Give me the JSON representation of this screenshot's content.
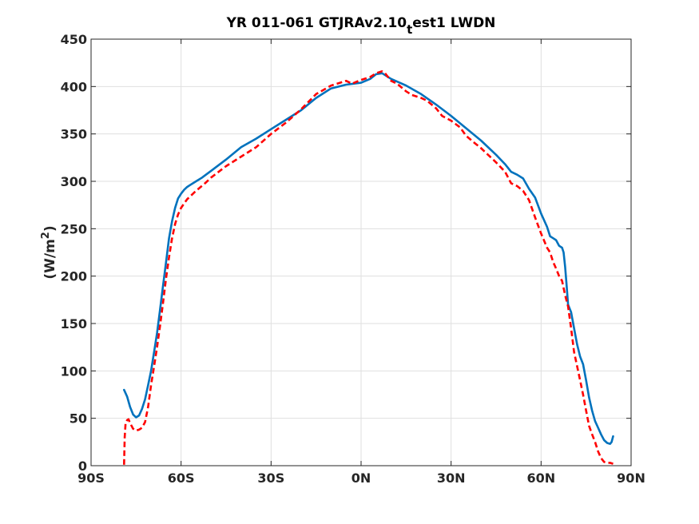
{
  "chart_data": {
    "type": "line",
    "title": {
      "main": "YR 011-061 GTJRAv2.10",
      "subscript": "t",
      "suffix": "est1 LWDN"
    },
    "xlabel": "",
    "ylabel": {
      "prefix": "(W/m",
      "superscript": "2",
      "suffix": ")"
    },
    "xlim": [
      -90,
      90
    ],
    "ylim": [
      0,
      450
    ],
    "xticks": [
      -90,
      -60,
      -30,
      0,
      30,
      60,
      90
    ],
    "xtick_labels": [
      "90S",
      "60S",
      "30S",
      "0N",
      "30N",
      "60N",
      "90N"
    ],
    "yticks": [
      0,
      50,
      100,
      150,
      200,
      250,
      300,
      350,
      400,
      450
    ],
    "ytick_labels": [
      "0",
      "50",
      "100",
      "150",
      "200",
      "250",
      "300",
      "350",
      "400",
      "450"
    ],
    "grid": true,
    "series": [
      {
        "color": "#0072bd",
        "style": "solid",
        "points": [
          [
            -79,
            80
          ],
          [
            -78,
            73
          ],
          [
            -77,
            62
          ],
          [
            -76,
            54
          ],
          [
            -75,
            51
          ],
          [
            -74,
            53
          ],
          [
            -73,
            60
          ],
          [
            -72,
            70
          ],
          [
            -71,
            85
          ],
          [
            -70,
            100
          ],
          [
            -69,
            120
          ],
          [
            -68,
            140
          ],
          [
            -67,
            165
          ],
          [
            -66,
            190
          ],
          [
            -65,
            215
          ],
          [
            -64,
            240
          ],
          [
            -63,
            258
          ],
          [
            -62,
            272
          ],
          [
            -61,
            282
          ],
          [
            -60,
            287
          ],
          [
            -59,
            291
          ],
          [
            -58,
            294
          ],
          [
            -57,
            296
          ],
          [
            -55,
            300
          ],
          [
            -53,
            304
          ],
          [
            -50,
            311
          ],
          [
            -45,
            323
          ],
          [
            -40,
            336
          ],
          [
            -35,
            345
          ],
          [
            -30,
            355
          ],
          [
            -25,
            365
          ],
          [
            -20,
            375
          ],
          [
            -15,
            388
          ],
          [
            -10,
            398
          ],
          [
            -5,
            402
          ],
          [
            0,
            404
          ],
          [
            3,
            408
          ],
          [
            5,
            413
          ],
          [
            7,
            414
          ],
          [
            10,
            408
          ],
          [
            15,
            401
          ],
          [
            20,
            392
          ],
          [
            25,
            381
          ],
          [
            30,
            369
          ],
          [
            35,
            356
          ],
          [
            40,
            343
          ],
          [
            45,
            328
          ],
          [
            48,
            318
          ],
          [
            50,
            310
          ],
          [
            52,
            307
          ],
          [
            54,
            303
          ],
          [
            56,
            292
          ],
          [
            58,
            283
          ],
          [
            60,
            266
          ],
          [
            62,
            252
          ],
          [
            63,
            242
          ],
          [
            64,
            240
          ],
          [
            65,
            238
          ],
          [
            66,
            232
          ],
          [
            67,
            230
          ],
          [
            67.5,
            225
          ],
          [
            68,
            210
          ],
          [
            68.5,
            190
          ],
          [
            69,
            170
          ],
          [
            70,
            162
          ],
          [
            71,
            145
          ],
          [
            72,
            128
          ],
          [
            73,
            115
          ],
          [
            74,
            107
          ],
          [
            75,
            90
          ],
          [
            76,
            72
          ],
          [
            77,
            58
          ],
          [
            78,
            47
          ],
          [
            79,
            40
          ],
          [
            80,
            33
          ],
          [
            81,
            27
          ],
          [
            82,
            24
          ],
          [
            83,
            23
          ],
          [
            83.5,
            25
          ],
          [
            84,
            31
          ]
        ]
      },
      {
        "color": "#ff0000",
        "style": "dashed",
        "points": [
          [
            -79,
            1
          ],
          [
            -78.8,
            30
          ],
          [
            -78.5,
            45
          ],
          [
            -78,
            48
          ],
          [
            -77.5,
            49
          ],
          [
            -77,
            45
          ],
          [
            -76,
            39
          ],
          [
            -75,
            37
          ],
          [
            -74,
            38
          ],
          [
            -73,
            40
          ],
          [
            -72,
            46
          ],
          [
            -71,
            62
          ],
          [
            -70,
            85
          ],
          [
            -69,
            105
          ],
          [
            -68,
            125
          ],
          [
            -67,
            148
          ],
          [
            -66,
            172
          ],
          [
            -65,
            198
          ],
          [
            -64,
            220
          ],
          [
            -63,
            240
          ],
          [
            -62,
            255
          ],
          [
            -61,
            265
          ],
          [
            -60,
            272
          ],
          [
            -58,
            281
          ],
          [
            -55,
            290
          ],
          [
            -52,
            298
          ],
          [
            -50,
            304
          ],
          [
            -45,
            316
          ],
          [
            -40,
            326
          ],
          [
            -35,
            336
          ],
          [
            -30,
            350
          ],
          [
            -25,
            362
          ],
          [
            -20,
            376
          ],
          [
            -15,
            392
          ],
          [
            -10,
            401
          ],
          [
            -7,
            404
          ],
          [
            -5,
            406
          ],
          [
            -3,
            403
          ],
          [
            0,
            407
          ],
          [
            3,
            410
          ],
          [
            5,
            414
          ],
          [
            7,
            416
          ],
          [
            8,
            414
          ],
          [
            10,
            406
          ],
          [
            12,
            403
          ],
          [
            15,
            395
          ],
          [
            17,
            391
          ],
          [
            20,
            388
          ],
          [
            22,
            385
          ],
          [
            25,
            377
          ],
          [
            27,
            369
          ],
          [
            30,
            364
          ],
          [
            33,
            357
          ],
          [
            35,
            348
          ],
          [
            38,
            340
          ],
          [
            40,
            335
          ],
          [
            45,
            320
          ],
          [
            48,
            310
          ],
          [
            50,
            298
          ],
          [
            52,
            295
          ],
          [
            54,
            290
          ],
          [
            56,
            280
          ],
          [
            58,
            262
          ],
          [
            60,
            245
          ],
          [
            62,
            230
          ],
          [
            63,
            225
          ],
          [
            64,
            215
          ],
          [
            65,
            208
          ],
          [
            66,
            200
          ],
          [
            67,
            195
          ],
          [
            68,
            180
          ],
          [
            69,
            168
          ],
          [
            70,
            145
          ],
          [
            71,
            120
          ],
          [
            72,
            105
          ],
          [
            73,
            90
          ],
          [
            74,
            75
          ],
          [
            75,
            58
          ],
          [
            76,
            42
          ],
          [
            77,
            33
          ],
          [
            78,
            25
          ],
          [
            79,
            15
          ],
          [
            80,
            8
          ],
          [
            81,
            4
          ],
          [
            82,
            3
          ],
          [
            83,
            3
          ],
          [
            84,
            2
          ]
        ]
      }
    ]
  }
}
